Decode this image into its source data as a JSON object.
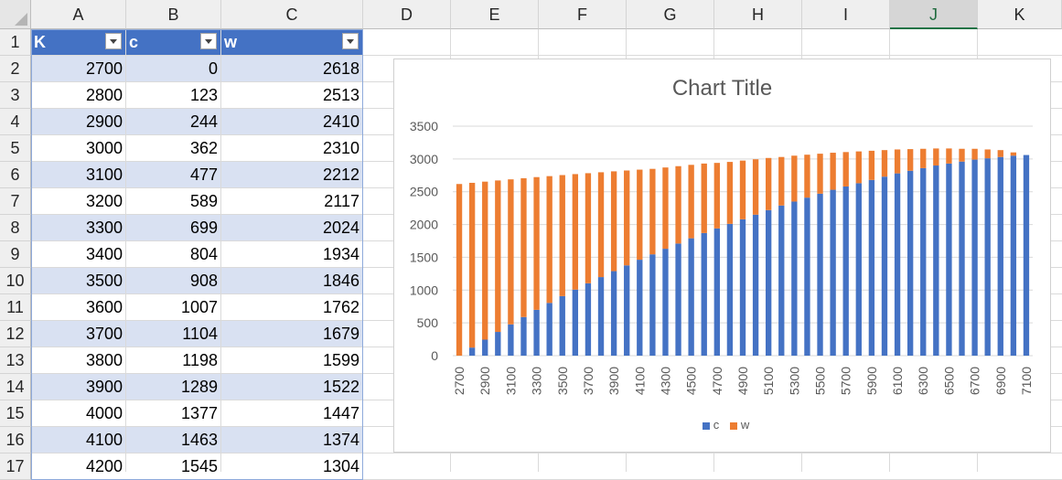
{
  "columns": [
    "A",
    "B",
    "C",
    "D",
    "E",
    "F",
    "G",
    "H",
    "I",
    "J",
    "K"
  ],
  "selected_column": "J",
  "rows": [
    "1",
    "2",
    "3",
    "4",
    "5",
    "6",
    "7",
    "8",
    "9",
    "10",
    "11",
    "12",
    "13",
    "14",
    "15",
    "16",
    "17"
  ],
  "table": {
    "headers": [
      "K",
      "c",
      "w"
    ],
    "data": [
      [
        "2700",
        "0",
        "2618"
      ],
      [
        "2800",
        "123",
        "2513"
      ],
      [
        "2900",
        "244",
        "2410"
      ],
      [
        "3000",
        "362",
        "2310"
      ],
      [
        "3100",
        "477",
        "2212"
      ],
      [
        "3200",
        "589",
        "2117"
      ],
      [
        "3300",
        "699",
        "2024"
      ],
      [
        "3400",
        "804",
        "1934"
      ],
      [
        "3500",
        "908",
        "1846"
      ],
      [
        "3600",
        "1007",
        "1762"
      ],
      [
        "3700",
        "1104",
        "1679"
      ],
      [
        "3800",
        "1198",
        "1599"
      ],
      [
        "3900",
        "1289",
        "1522"
      ],
      [
        "4000",
        "1377",
        "1447"
      ],
      [
        "4100",
        "1463",
        "1374"
      ],
      [
        "4200",
        "1545",
        "1304"
      ]
    ]
  },
  "colors": {
    "header_fill": "#4472c4",
    "band_fill": "#d9e1f2",
    "series_c": "#4472c4",
    "series_w": "#ed7d31",
    "select_accent": "#217346"
  },
  "chart_data": {
    "type": "bar",
    "stacked": true,
    "title": "Chart Title",
    "xlabel": "",
    "ylabel": "",
    "ylim": [
      0,
      3500
    ],
    "yticks": [
      "0",
      "500",
      "1000",
      "1500",
      "2000",
      "2500",
      "3000",
      "3500"
    ],
    "categories": [
      "2700",
      "2800",
      "2900",
      "3000",
      "3100",
      "3200",
      "3300",
      "3400",
      "3500",
      "3600",
      "3700",
      "3800",
      "3900",
      "4000",
      "4100",
      "4200",
      "4300",
      "4400",
      "4500",
      "4600",
      "4700",
      "4800",
      "4900",
      "5000",
      "5100",
      "5200",
      "5300",
      "5400",
      "5500",
      "5600",
      "5700",
      "5800",
      "5900",
      "6000",
      "6100",
      "6200",
      "6300",
      "6400",
      "6500",
      "6600",
      "6700",
      "6800",
      "6900",
      "7000",
      "7100"
    ],
    "series": [
      {
        "name": "c",
        "values": [
          0,
          123,
          244,
          362,
          477,
          589,
          699,
          804,
          908,
          1007,
          1104,
          1198,
          1289,
          1377,
          1463,
          1545,
          1630,
          1710,
          1790,
          1870,
          1940,
          2010,
          2080,
          2150,
          2220,
          2290,
          2350,
          2410,
          2470,
          2530,
          2580,
          2630,
          2680,
          2730,
          2780,
          2820,
          2860,
          2900,
          2930,
          2960,
          2990,
          3010,
          3030,
          3050,
          3060
        ]
      },
      {
        "name": "w",
        "values": [
          2618,
          2513,
          2410,
          2310,
          2212,
          2117,
          2024,
          1934,
          1846,
          1762,
          1679,
          1599,
          1522,
          1447,
          1374,
          1304,
          1240,
          1180,
          1120,
          1060,
          1000,
          945,
          895,
          845,
          795,
          740,
          700,
          655,
          610,
          565,
          525,
          485,
          445,
          405,
          365,
          330,
          295,
          260,
          230,
          195,
          165,
          135,
          105,
          50,
          0
        ]
      }
    ],
    "legend_position": "bottom",
    "grid": true
  }
}
